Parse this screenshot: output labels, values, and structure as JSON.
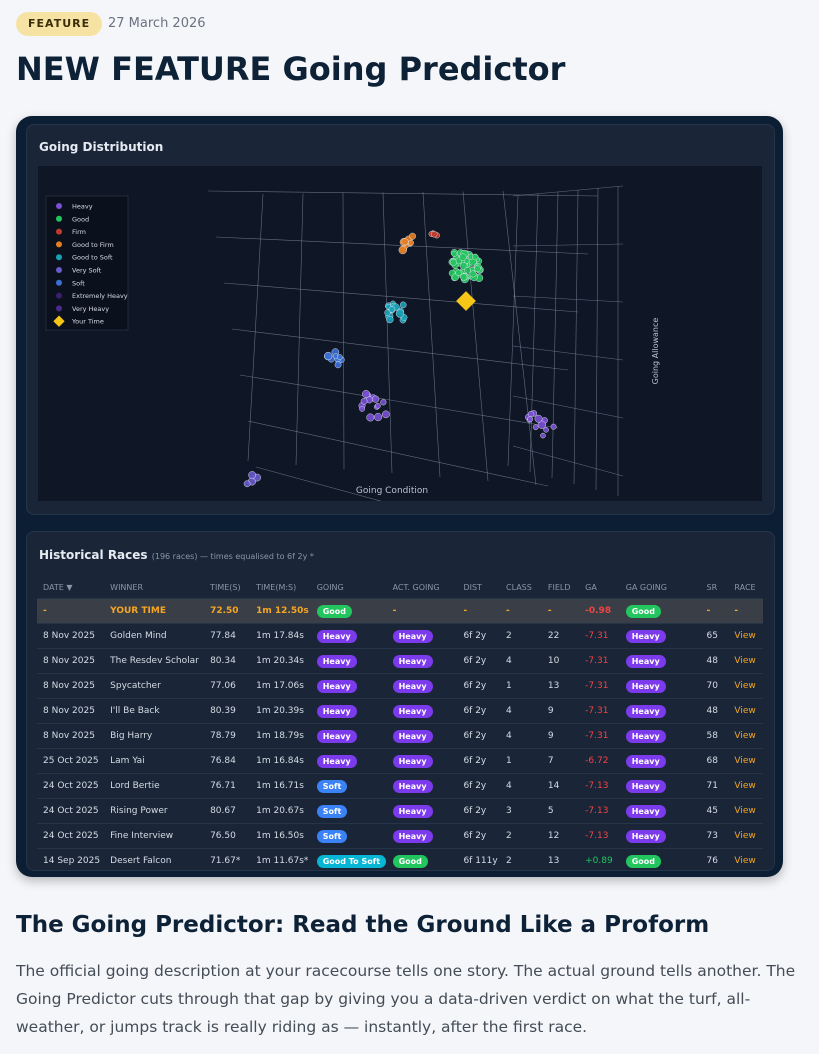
{
  "header": {
    "tag": "FEATURE",
    "date": "27 March 2026",
    "title": "NEW FEATURE Going Predictor"
  },
  "distribution": {
    "title": "Going Distribution",
    "x_axis_title": "Going Condition",
    "z_axis_title": "Going Allowance",
    "legend": [
      {
        "name": "Heavy",
        "color": "#7b4fd6"
      },
      {
        "name": "Good",
        "color": "#22c55e"
      },
      {
        "name": "Firm",
        "color": "#c0392b"
      },
      {
        "name": "Good to Firm",
        "color": "#e67e22"
      },
      {
        "name": "Good to Soft",
        "color": "#17a2b8"
      },
      {
        "name": "Very Soft",
        "color": "#6a5acd"
      },
      {
        "name": "Soft",
        "color": "#3b6fd6"
      },
      {
        "name": "Extremely Heavy",
        "color": "#3b1f6e"
      },
      {
        "name": "Very Heavy",
        "color": "#4b2a8a"
      },
      {
        "name": "Your Time",
        "color": "#f5c518"
      }
    ]
  },
  "table": {
    "title": "Historical Races",
    "subtitle": "(196 races) — times equalised to 6f 2y *",
    "headers": [
      "DATE ▼",
      "WINNER",
      "TIME(S)",
      "TIME(M:S)",
      "GOING",
      "ACT. GOING",
      "DIST",
      "CLASS",
      "FIELD",
      "GA",
      "GA GOING",
      "SR",
      "RACE"
    ],
    "badge_colors": {
      "Heavy": "#7c3aed",
      "Soft": "#3b82f6",
      "Good": "#22c55e",
      "Good To Soft": "#06b6d4"
    },
    "rows": [
      [
        "-",
        "YOUR TIME",
        "72.50",
        "1m 12.50s",
        "Good",
        "-",
        "-",
        "-",
        "-",
        "-0.98",
        "Good",
        "-",
        "-"
      ],
      [
        "8 Nov 2025",
        "Golden Mind",
        "77.84",
        "1m 17.84s",
        "Heavy",
        "Heavy",
        "6f 2y",
        "2",
        "22",
        "-7.31",
        "Heavy",
        "65",
        "View"
      ],
      [
        "8 Nov 2025",
        "The Resdev Scholar",
        "80.34",
        "1m 20.34s",
        "Heavy",
        "Heavy",
        "6f 2y",
        "4",
        "10",
        "-7.31",
        "Heavy",
        "48",
        "View"
      ],
      [
        "8 Nov 2025",
        "Spycatcher",
        "77.06",
        "1m 17.06s",
        "Heavy",
        "Heavy",
        "6f 2y",
        "1",
        "13",
        "-7.31",
        "Heavy",
        "70",
        "View"
      ],
      [
        "8 Nov 2025",
        "I'll Be Back",
        "80.39",
        "1m 20.39s",
        "Heavy",
        "Heavy",
        "6f 2y",
        "4",
        "9",
        "-7.31",
        "Heavy",
        "48",
        "View"
      ],
      [
        "8 Nov 2025",
        "Big Harry",
        "78.79",
        "1m 18.79s",
        "Heavy",
        "Heavy",
        "6f 2y",
        "4",
        "9",
        "-7.31",
        "Heavy",
        "58",
        "View"
      ],
      [
        "25 Oct 2025",
        "Lam Yai",
        "76.84",
        "1m 16.84s",
        "Heavy",
        "Heavy",
        "6f 2y",
        "1",
        "7",
        "-6.72",
        "Heavy",
        "68",
        "View"
      ],
      [
        "24 Oct 2025",
        "Lord Bertie",
        "76.71",
        "1m 16.71s",
        "Soft",
        "Heavy",
        "6f 2y",
        "4",
        "14",
        "-7.13",
        "Heavy",
        "71",
        "View"
      ],
      [
        "24 Oct 2025",
        "Rising Power",
        "80.67",
        "1m 20.67s",
        "Soft",
        "Heavy",
        "6f 2y",
        "3",
        "5",
        "-7.13",
        "Heavy",
        "45",
        "View"
      ],
      [
        "24 Oct 2025",
        "Fine Interview",
        "76.50",
        "1m 16.50s",
        "Soft",
        "Heavy",
        "6f 2y",
        "2",
        "12",
        "-7.13",
        "Heavy",
        "73",
        "View"
      ],
      [
        "14 Sep 2025",
        "Desert Falcon",
        "71.67*",
        "1m 11.67s*",
        "Good To Soft",
        "Good",
        "6f 111y",
        "2",
        "13",
        "+0.89",
        "Good",
        "76",
        "View"
      ]
    ]
  },
  "article": {
    "heading": "The Going Predictor: Read the Ground Like a Proform",
    "paragraph": "The official going description at your racecourse tells one story. The actual ground tells another. The Going Predictor cuts through that gap by giving you a data-driven verdict on what the turf, all-weather, or jumps track is really riding as — instantly, after the first race."
  }
}
